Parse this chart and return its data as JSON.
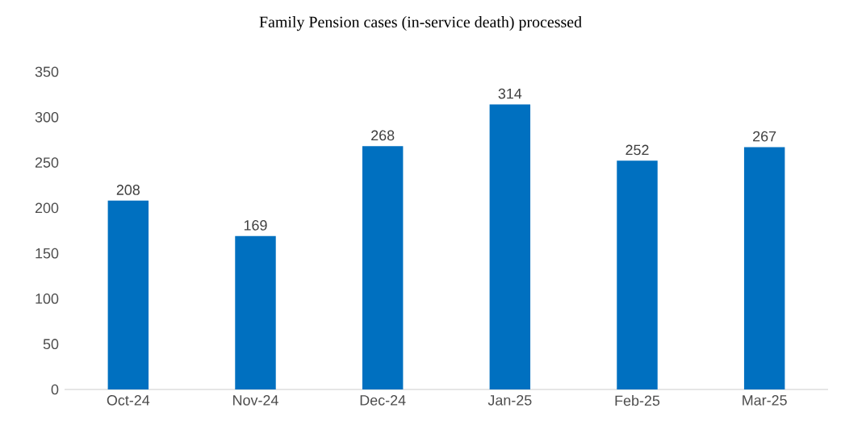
{
  "chart_data": {
    "type": "bar",
    "title": "Family Pension cases (in-service death) processed",
    "categories": [
      "Oct-24",
      "Nov-24",
      "Dec-24",
      "Jan-25",
      "Feb-25",
      "Mar-25"
    ],
    "values": [
      208,
      169,
      268,
      314,
      252,
      267
    ],
    "color": "#0070c0",
    "ylim": [
      0,
      350
    ],
    "yticks": [
      0,
      50,
      100,
      150,
      200,
      250,
      300,
      350
    ],
    "grid": false,
    "data_labels": true
  }
}
